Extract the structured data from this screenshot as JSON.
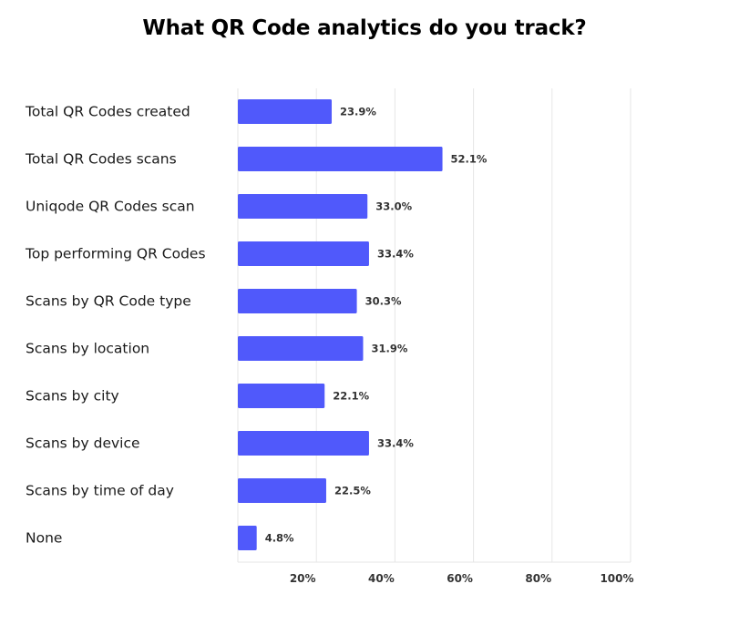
{
  "chart_data": {
    "type": "bar",
    "orientation": "horizontal",
    "title": "What QR Code analytics do you track?",
    "categories": [
      "Total QR Codes created",
      "Total QR Codes scans",
      "Uniqode QR Codes scan",
      "Top performing QR Codes",
      "Scans by QR Code type",
      "Scans by location",
      "Scans by city",
      "Scans by device",
      "Scans by time of day",
      "None"
    ],
    "values": [
      23.9,
      52.1,
      33.0,
      33.4,
      30.3,
      31.9,
      22.1,
      33.4,
      22.5,
      4.8
    ],
    "value_labels": [
      "23.9%",
      "52.1%",
      "33.0%",
      "33.4%",
      "30.3%",
      "31.9%",
      "22.1%",
      "33.4%",
      "22.5%",
      "4.8%"
    ],
    "xlim": [
      0,
      100
    ],
    "x_ticks": [
      20,
      40,
      60,
      80,
      100
    ],
    "x_tick_labels": [
      "20%",
      "40%",
      "60%",
      "80%",
      "100%"
    ],
    "xlabel": "",
    "ylabel": "",
    "grid": "vertical",
    "legend": "none",
    "bar_color": "#5059fb",
    "grid_color": "#e6e6e6"
  }
}
